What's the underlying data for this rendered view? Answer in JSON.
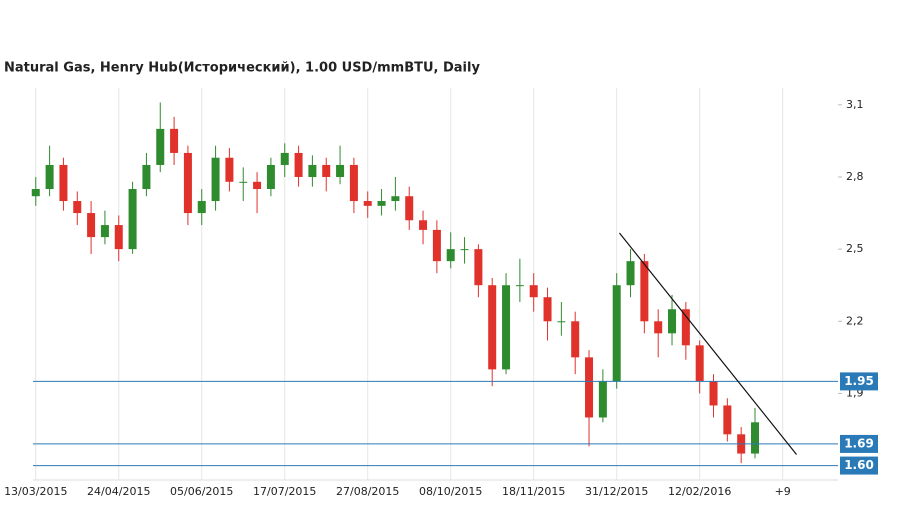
{
  "chart_data": {
    "type": "candlestick",
    "title": "Natural Gas, Henry Hub(Исторический), 1.00 USD/mmBTU, Daily",
    "x": [
      0,
      5,
      10,
      15,
      20,
      25,
      30,
      35,
      40,
      45,
      50,
      55,
      60,
      65,
      70,
      75,
      80,
      85,
      90,
      95,
      100,
      105,
      110,
      115,
      120,
      125,
      130,
      135,
      140,
      145,
      150,
      155,
      160,
      165,
      170,
      175,
      180,
      185,
      190,
      195,
      200,
      205,
      210,
      215,
      220,
      225,
      230,
      235,
      240,
      245,
      250,
      255,
      260
    ],
    "open": [
      2.72,
      2.75,
      2.85,
      2.7,
      2.65,
      2.55,
      2.6,
      2.5,
      2.75,
      2.85,
      3.0,
      2.9,
      2.65,
      2.7,
      2.88,
      2.78,
      2.78,
      2.75,
      2.85,
      2.9,
      2.8,
      2.85,
      2.8,
      2.85,
      2.7,
      2.68,
      2.7,
      2.72,
      2.62,
      2.58,
      2.45,
      2.5,
      2.5,
      2.35,
      2.0,
      2.35,
      2.35,
      2.3,
      2.2,
      2.2,
      2.05,
      1.8,
      1.95,
      2.35,
      2.45,
      2.2,
      2.15,
      2.25,
      2.1,
      1.95,
      1.85,
      1.73,
      1.65
    ],
    "high": [
      2.8,
      2.93,
      2.88,
      2.74,
      2.7,
      2.66,
      2.64,
      2.78,
      2.9,
      3.11,
      3.05,
      2.93,
      2.75,
      2.93,
      2.92,
      2.84,
      2.82,
      2.88,
      2.94,
      2.93,
      2.89,
      2.88,
      2.93,
      2.88,
      2.74,
      2.75,
      2.8,
      2.76,
      2.66,
      2.62,
      2.57,
      2.55,
      2.52,
      2.38,
      2.4,
      2.46,
      2.4,
      2.34,
      2.28,
      2.24,
      2.08,
      2.0,
      2.4,
      2.5,
      2.48,
      2.25,
      2.31,
      2.28,
      2.12,
      1.98,
      1.88,
      1.76,
      1.84
    ],
    "low": [
      2.68,
      2.72,
      2.66,
      2.6,
      2.48,
      2.52,
      2.45,
      2.48,
      2.72,
      2.82,
      2.85,
      2.6,
      2.6,
      2.66,
      2.74,
      2.7,
      2.65,
      2.72,
      2.8,
      2.76,
      2.76,
      2.74,
      2.77,
      2.65,
      2.63,
      2.64,
      2.66,
      2.58,
      2.52,
      2.4,
      2.42,
      2.44,
      2.3,
      1.93,
      1.98,
      2.28,
      2.24,
      2.12,
      2.14,
      1.98,
      1.68,
      1.78,
      1.92,
      2.3,
      2.15,
      2.05,
      2.1,
      2.04,
      1.9,
      1.8,
      1.7,
      1.61,
      1.63
    ],
    "close": [
      2.75,
      2.85,
      2.7,
      2.65,
      2.55,
      2.6,
      2.5,
      2.75,
      2.85,
      3.0,
      2.9,
      2.65,
      2.7,
      2.88,
      2.78,
      2.78,
      2.75,
      2.85,
      2.9,
      2.8,
      2.85,
      2.8,
      2.85,
      2.7,
      2.68,
      2.7,
      2.72,
      2.62,
      2.58,
      2.45,
      2.5,
      2.5,
      2.35,
      2.0,
      2.35,
      2.35,
      2.3,
      2.2,
      2.2,
      2.05,
      1.8,
      1.95,
      2.35,
      2.45,
      2.2,
      2.15,
      2.25,
      2.1,
      1.95,
      1.85,
      1.73,
      1.65,
      1.78
    ],
    "up_color": "#2e8b2e",
    "down_color": "#e0312b",
    "xlim": [
      -1,
      290
    ],
    "xticks": [
      {
        "value": 0,
        "label": "13/03/2015"
      },
      {
        "value": 30,
        "label": "24/04/2015"
      },
      {
        "value": 60,
        "label": "05/06/2015"
      },
      {
        "value": 90,
        "label": "17/07/2015"
      },
      {
        "value": 120,
        "label": "27/08/2015"
      },
      {
        "value": 150,
        "label": "08/10/2015"
      },
      {
        "value": 180,
        "label": "18/11/2015"
      },
      {
        "value": 210,
        "label": "31/12/2015"
      },
      {
        "value": 240,
        "label": "12/02/2016"
      },
      {
        "value": 270,
        "label": "+9"
      }
    ],
    "ylim": [
      1.54,
      3.17
    ],
    "yticks": [
      {
        "value": 3.1,
        "label": "3,1"
      },
      {
        "value": 2.8,
        "label": "2,8"
      },
      {
        "value": 2.5,
        "label": "2,5"
      },
      {
        "value": 2.2,
        "label": "2,2"
      },
      {
        "value": 1.9,
        "label": "1,9"
      }
    ],
    "levels": {
      "values": [
        1.95,
        1.69,
        1.6
      ],
      "value_labels": [
        "1.95",
        "1.69",
        "1.60"
      ],
      "color": "#2a7ab8"
    },
    "trendline": {
      "x": [
        211,
        275
      ],
      "y": [
        2.567,
        1.646
      ],
      "color": "#111111"
    },
    "grid": true
  }
}
